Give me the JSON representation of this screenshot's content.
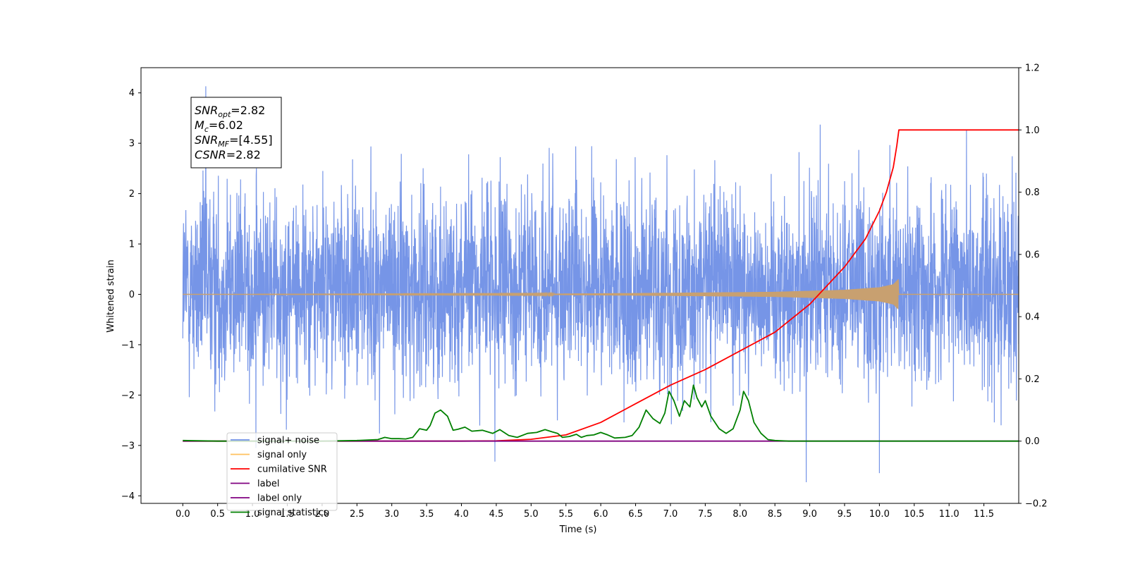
{
  "chart_data": {
    "type": "line",
    "xlabel": "Time (s)",
    "ylabel": "Whitened strain",
    "xlim": [
      -0.6,
      12.0
    ],
    "ylim": [
      -4.15,
      4.5
    ],
    "y2lim": [
      -0.2,
      1.2
    ],
    "x_ticks": [
      0.0,
      0.5,
      1.0,
      1.5,
      2.0,
      2.5,
      3.0,
      3.5,
      4.0,
      4.5,
      5.0,
      5.5,
      6.0,
      6.5,
      7.0,
      7.5,
      8.0,
      8.5,
      9.0,
      9.5,
      10.0,
      10.5,
      11.0,
      11.5
    ],
    "x_tick_labels": [
      "0.0",
      "0.5",
      "1.0",
      "1.5",
      "2.0",
      "2.5",
      "3.0",
      "3.5",
      "4.0",
      "4.5",
      "5.0",
      "5.5",
      "6.0",
      "6.5",
      "7.0",
      "7.5",
      "8.0",
      "8.5",
      "9.0",
      "9.5",
      "10.0",
      "10.5",
      "11.0",
      "11.5"
    ],
    "y_ticks": [
      -4,
      -3,
      -2,
      -1,
      0,
      1,
      2,
      3,
      4
    ],
    "y_tick_labels": [
      "−4",
      "−3",
      "−2",
      "−1",
      "0",
      "1",
      "2",
      "3",
      "4"
    ],
    "y2_ticks": [
      -0.2,
      0.0,
      0.2,
      0.4,
      0.6,
      0.8,
      1.0,
      1.2
    ],
    "y2_tick_labels": [
      "−0.2",
      "0.0",
      "0.2",
      "0.4",
      "0.6",
      "0.8",
      "1.0",
      "1.2"
    ],
    "grid": false,
    "legend_position": "lower-left",
    "legend": [
      {
        "label": "signal+ noise",
        "color": "#6f8fe6"
      },
      {
        "label": "signal only",
        "color": "#ffc15e"
      },
      {
        "label": "cumilative SNR",
        "color": "#ff0000"
      },
      {
        "label": "label",
        "color": "#800080"
      },
      {
        "label": "label only",
        "color": "#800080"
      },
      {
        "label": "signal statistics",
        "color": "#008000"
      }
    ],
    "annotation": [
      {
        "base": "SNR",
        "sub": "opt",
        "rest": "=2.82"
      },
      {
        "base": "M",
        "sub": "c",
        "rest": "=6.02"
      },
      {
        "base": "SNR",
        "sub": "MF",
        "rest": "=[4.55]"
      },
      {
        "base": "CSNR",
        "sub": "",
        "rest": "=2.82"
      }
    ],
    "series": [
      {
        "name": "signal+ noise",
        "axis": "left",
        "color": "#6f8fe6",
        "kind": "noise",
        "x_range": [
          0.0,
          12.0
        ],
        "envelope": [
          -2.9,
          3.2
        ],
        "peaks": [
          [
            0.33,
            4.13
          ],
          [
            9.15,
            3.37
          ],
          [
            11.25,
            3.26
          ],
          [
            8.95,
            -3.73
          ],
          [
            10.0,
            -3.55
          ],
          [
            4.48,
            -3.32
          ],
          [
            1.05,
            -3.05
          ]
        ]
      },
      {
        "name": "signal only",
        "axis": "left",
        "color": "#c8a070",
        "kind": "chirp",
        "x_range": [
          0.0,
          12.0
        ],
        "merger_time": 10.27,
        "amplitude_points": [
          [
            0.0,
            0.0
          ],
          [
            5.0,
            0.01
          ],
          [
            7.0,
            0.03
          ],
          [
            8.5,
            0.05
          ],
          [
            9.5,
            0.09
          ],
          [
            10.0,
            0.14
          ],
          [
            10.2,
            0.2
          ],
          [
            10.27,
            0.3
          ]
        ]
      },
      {
        "name": "cumilative SNR",
        "axis": "right",
        "color": "#ff0000",
        "x": [
          0.0,
          4.0,
          4.5,
          5.0,
          5.5,
          6.0,
          6.5,
          7.0,
          7.5,
          8.0,
          8.5,
          9.0,
          9.5,
          9.8,
          10.0,
          10.1,
          10.2,
          10.25,
          10.28,
          12.0
        ],
        "y": [
          0.0,
          0.0,
          0.001,
          0.006,
          0.02,
          0.06,
          0.12,
          0.18,
          0.23,
          0.29,
          0.35,
          0.44,
          0.56,
          0.65,
          0.74,
          0.8,
          0.88,
          0.95,
          1.0,
          1.0
        ]
      },
      {
        "name": "label",
        "axis": "right",
        "color": "#800080",
        "x": [
          0.0,
          12.0
        ],
        "y": [
          0.0,
          0.0
        ]
      },
      {
        "name": "signal statistics",
        "axis": "right",
        "color": "#008000",
        "x": [
          0.0,
          0.5,
          1.0,
          1.5,
          2.0,
          2.5,
          2.8,
          2.9,
          3.0,
          3.1,
          3.2,
          3.3,
          3.4,
          3.5,
          3.55,
          3.62,
          3.7,
          3.8,
          3.88,
          3.95,
          4.05,
          4.15,
          4.3,
          4.45,
          4.55,
          4.68,
          4.8,
          4.95,
          5.08,
          5.2,
          5.3,
          5.38,
          5.45,
          5.55,
          5.65,
          5.72,
          5.8,
          5.9,
          6.0,
          6.1,
          6.2,
          6.35,
          6.45,
          6.55,
          6.65,
          6.75,
          6.85,
          6.92,
          6.98,
          7.05,
          7.13,
          7.2,
          7.28,
          7.33,
          7.38,
          7.45,
          7.5,
          7.58,
          7.7,
          7.8,
          7.9,
          8.0,
          8.05,
          8.12,
          8.2,
          8.3,
          8.4,
          8.5,
          8.7,
          9.0,
          12.0
        ],
        "y": [
          0.002,
          0.0,
          0.0,
          0.0,
          0.0,
          0.002,
          0.005,
          0.012,
          0.008,
          0.008,
          0.007,
          0.012,
          0.04,
          0.035,
          0.05,
          0.09,
          0.1,
          0.08,
          0.035,
          0.038,
          0.045,
          0.032,
          0.035,
          0.025,
          0.037,
          0.018,
          0.012,
          0.025,
          0.028,
          0.037,
          0.03,
          0.025,
          0.012,
          0.015,
          0.022,
          0.012,
          0.018,
          0.02,
          0.028,
          0.02,
          0.01,
          0.012,
          0.018,
          0.045,
          0.1,
          0.072,
          0.057,
          0.09,
          0.16,
          0.13,
          0.08,
          0.13,
          0.11,
          0.18,
          0.14,
          0.11,
          0.13,
          0.08,
          0.04,
          0.025,
          0.04,
          0.1,
          0.16,
          0.13,
          0.06,
          0.025,
          0.005,
          0.002,
          0.0,
          0.0,
          0.0
        ]
      }
    ]
  }
}
